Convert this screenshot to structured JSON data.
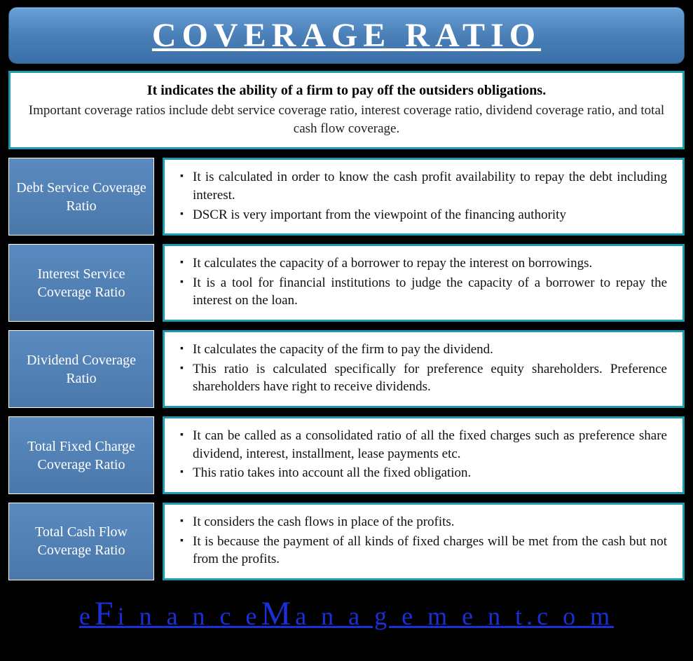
{
  "title": "COVERAGE RATIO",
  "intro": {
    "bold": "It indicates the ability of a firm to pay off the outsiders obligations.",
    "sub": "Important coverage ratios include debt service coverage ratio, interest coverage ratio, dividend coverage ratio, and total cash flow coverage."
  },
  "rows": [
    {
      "label": "Debt Service Coverage Ratio",
      "points": [
        "It is  calculated in order to know the cash profit availability to repay the debt including interest.",
        "DSCR is very important from the viewpoint of the financing authority"
      ]
    },
    {
      "label": "Interest Service Coverage Ratio",
      "points": [
        "It calculates the capacity of a borrower to repay the interest on borrowings.",
        "It is a tool for financial institutions to judge the capacity of a borrower to repay the interest on the loan."
      ]
    },
    {
      "label": "Dividend Coverage Ratio",
      "points": [
        "It calculates the capacity of the firm to pay the dividend.",
        "This ratio is calculated specifically for preference equity shareholders. Preference shareholders have right to receive dividends."
      ]
    },
    {
      "label": "Total Fixed Charge Coverage Ratio",
      "points": [
        "It can be called as a consolidated ratio of all the fixed charges such as preference share dividend, interest, installment, lease payments etc.",
        "This ratio takes into account all the fixed obligation."
      ]
    },
    {
      "label": "Total Cash Flow Coverage Ratio",
      "points": [
        "It considers the cash flows in place of the profits.",
        "It is because the payment of all kinds of fixed charges will be met from the cash but not from the profits."
      ]
    }
  ],
  "footer": {
    "segments": [
      "e",
      "F",
      "i n a n c e",
      "M",
      "a n a g e m e n t",
      ".",
      "c o m"
    ],
    "big_indices": [
      1,
      3
    ]
  },
  "style": {
    "background": "#000000",
    "title_bg_gradient": [
      "#6aa0d8",
      "#4a7fb8",
      "#3a6fa8"
    ],
    "title_color": "#ffffff",
    "title_fontsize": 48,
    "title_letter_spacing": 8,
    "intro_border_color": "#1a9bb0",
    "intro_bg": "#ffffff",
    "intro_bold_fontsize": 20,
    "intro_sub_fontsize": 19,
    "label_bg_gradient": [
      "#5a8ac0",
      "#4a78aa"
    ],
    "label_color": "#ffffff",
    "label_fontsize": 20,
    "label_width": 208,
    "desc_border_color": "#1a9bb0",
    "desc_bg": "#ffffff",
    "desc_fontsize": 19,
    "bullet_char": "▪",
    "footer_color": "#1a2fd8",
    "footer_fontsize": 36,
    "footer_big_fontsize": 48,
    "footer_letter_spacing": 6,
    "row_gap": 12,
    "font_family": "Garamond, Georgia, Times New Roman, serif"
  }
}
